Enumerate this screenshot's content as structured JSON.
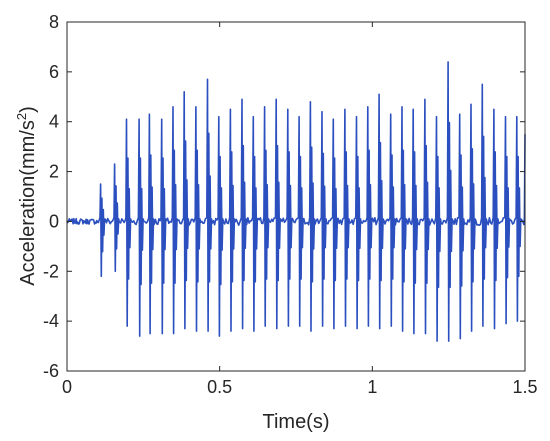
{
  "chart_data": {
    "type": "line",
    "xlabel": "Time(s)",
    "ylabel_main": "Acceleration(mm/s",
    "ylabel_sup": "2",
    "ylabel_close": ")",
    "xlim": [
      0,
      1.5
    ],
    "ylim": [
      -6,
      8
    ],
    "x_ticks": [
      0,
      0.5,
      1,
      1.5
    ],
    "x_tick_labels": [
      "0",
      "0.5",
      "1",
      "1.5"
    ],
    "y_ticks": [
      -6,
      -4,
      -2,
      0,
      2,
      4,
      6,
      8
    ],
    "y_tick_labels": [
      "-6",
      "-4",
      "-2",
      "0",
      "2",
      "4",
      "6",
      "8"
    ],
    "grid": false,
    "series": [
      {
        "color": "#2b4fbf",
        "signal": "periodic impulse vibration",
        "quiet_until": 0.105,
        "pulse_times": [
          0.11,
          0.156,
          0.195,
          0.236,
          0.27,
          0.31,
          0.347,
          0.384,
          0.422,
          0.46,
          0.497,
          0.535,
          0.573,
          0.61,
          0.647,
          0.685,
          0.723,
          0.76,
          0.797,
          0.835,
          0.872,
          0.91,
          0.948,
          0.985,
          1.022,
          1.06,
          1.097,
          1.134,
          1.172,
          1.21,
          1.248,
          1.286,
          1.323,
          1.36,
          1.398,
          1.436,
          1.473,
          1.5
        ],
        "pulse_peaks": [
          1.5,
          2.3,
          4.1,
          4.1,
          4.3,
          4.1,
          4.6,
          5.2,
          4.6,
          5.7,
          4.2,
          4.5,
          4.9,
          4.2,
          4.6,
          4.9,
          4.5,
          4.2,
          4.8,
          4.4,
          4.1,
          4.5,
          4.2,
          4.6,
          5.1,
          4.3,
          4.6,
          4.5,
          4.9,
          4.2,
          6.4,
          4.3,
          4.7,
          5.5,
          4.5,
          4.2,
          4.2,
          3.5
        ],
        "pulse_troughs": [
          -2.2,
          -2.0,
          -4.2,
          -4.6,
          -4.5,
          -4.5,
          -4.5,
          -4.3,
          -4.4,
          -4.4,
          -4.6,
          -4.4,
          -4.3,
          -4.4,
          -4.2,
          -4.3,
          -4.2,
          -4.2,
          -4.4,
          -4.2,
          -4.3,
          -4.2,
          -4.3,
          -4.2,
          -4.3,
          -4.2,
          -4.4,
          -4.5,
          -4.5,
          -4.8,
          -4.8,
          -4.7,
          -4.4,
          -4.2,
          -4.3,
          -4.1,
          -4.0,
          -4.0
        ]
      }
    ]
  }
}
